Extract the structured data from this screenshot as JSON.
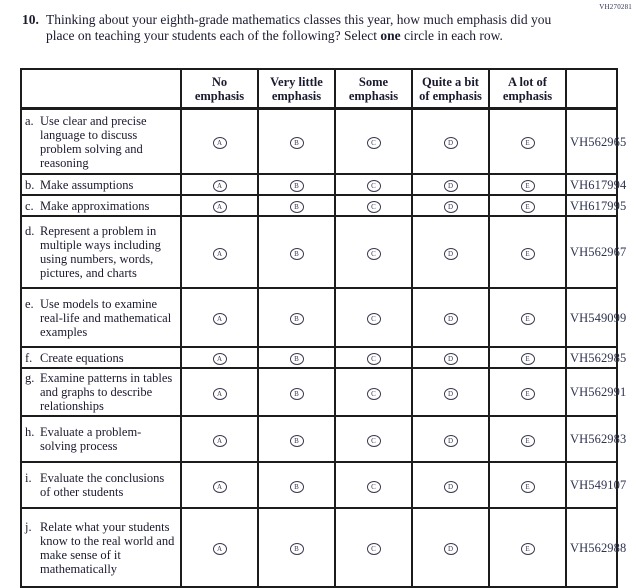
{
  "page": {
    "top_code": "VH270281"
  },
  "question": {
    "number": "10.",
    "text_before_bold": "Thinking about your eighth-grade mathematics classes this year, how much emphasis did you place on teaching your students each of the following? Select ",
    "bold_word": "one",
    "text_after_bold": " circle in each row."
  },
  "table": {
    "columns": [
      {
        "line1": "No",
        "line2": "emphasis"
      },
      {
        "line1": "Very little",
        "line2": "emphasis"
      },
      {
        "line1": "Some",
        "line2": "emphasis"
      },
      {
        "line1": "Quite a bit",
        "line2": "of emphasis"
      },
      {
        "line1": "A lot of",
        "line2": "emphasis"
      }
    ],
    "option_letters": [
      "A",
      "B",
      "C",
      "D",
      "E"
    ],
    "rows": [
      {
        "letter": "a.",
        "label": "Use clear and precise language to discuss problem solving and reasoning",
        "code": "VH562965"
      },
      {
        "letter": "b.",
        "label": "Make assumptions",
        "code": "VH617994"
      },
      {
        "letter": "c.",
        "label": "Make approximations",
        "code": "VH617995"
      },
      {
        "letter": "d.",
        "label": "Represent a problem in multiple ways including using numbers, words, pictures, and charts",
        "code": "VH562967"
      },
      {
        "letter": "e.",
        "label": "Use models to examine real-life and mathematical examples",
        "code": "VH549099"
      },
      {
        "letter": "f.",
        "label": "Create equations",
        "code": "VH562985"
      },
      {
        "letter": "g.",
        "label": "Examine patterns in tables and graphs to describe relationships",
        "code": "VH562991"
      },
      {
        "letter": "h.",
        "label": "Evaluate a problem-solving process",
        "code": "VH562983"
      },
      {
        "letter": "i.",
        "label": "Evaluate the conclusions of other students",
        "code": "VH549107"
      },
      {
        "letter": "j.",
        "label": "Relate what your students know to the real world and make sense of it mathematically",
        "code": "VH562988"
      }
    ]
  }
}
